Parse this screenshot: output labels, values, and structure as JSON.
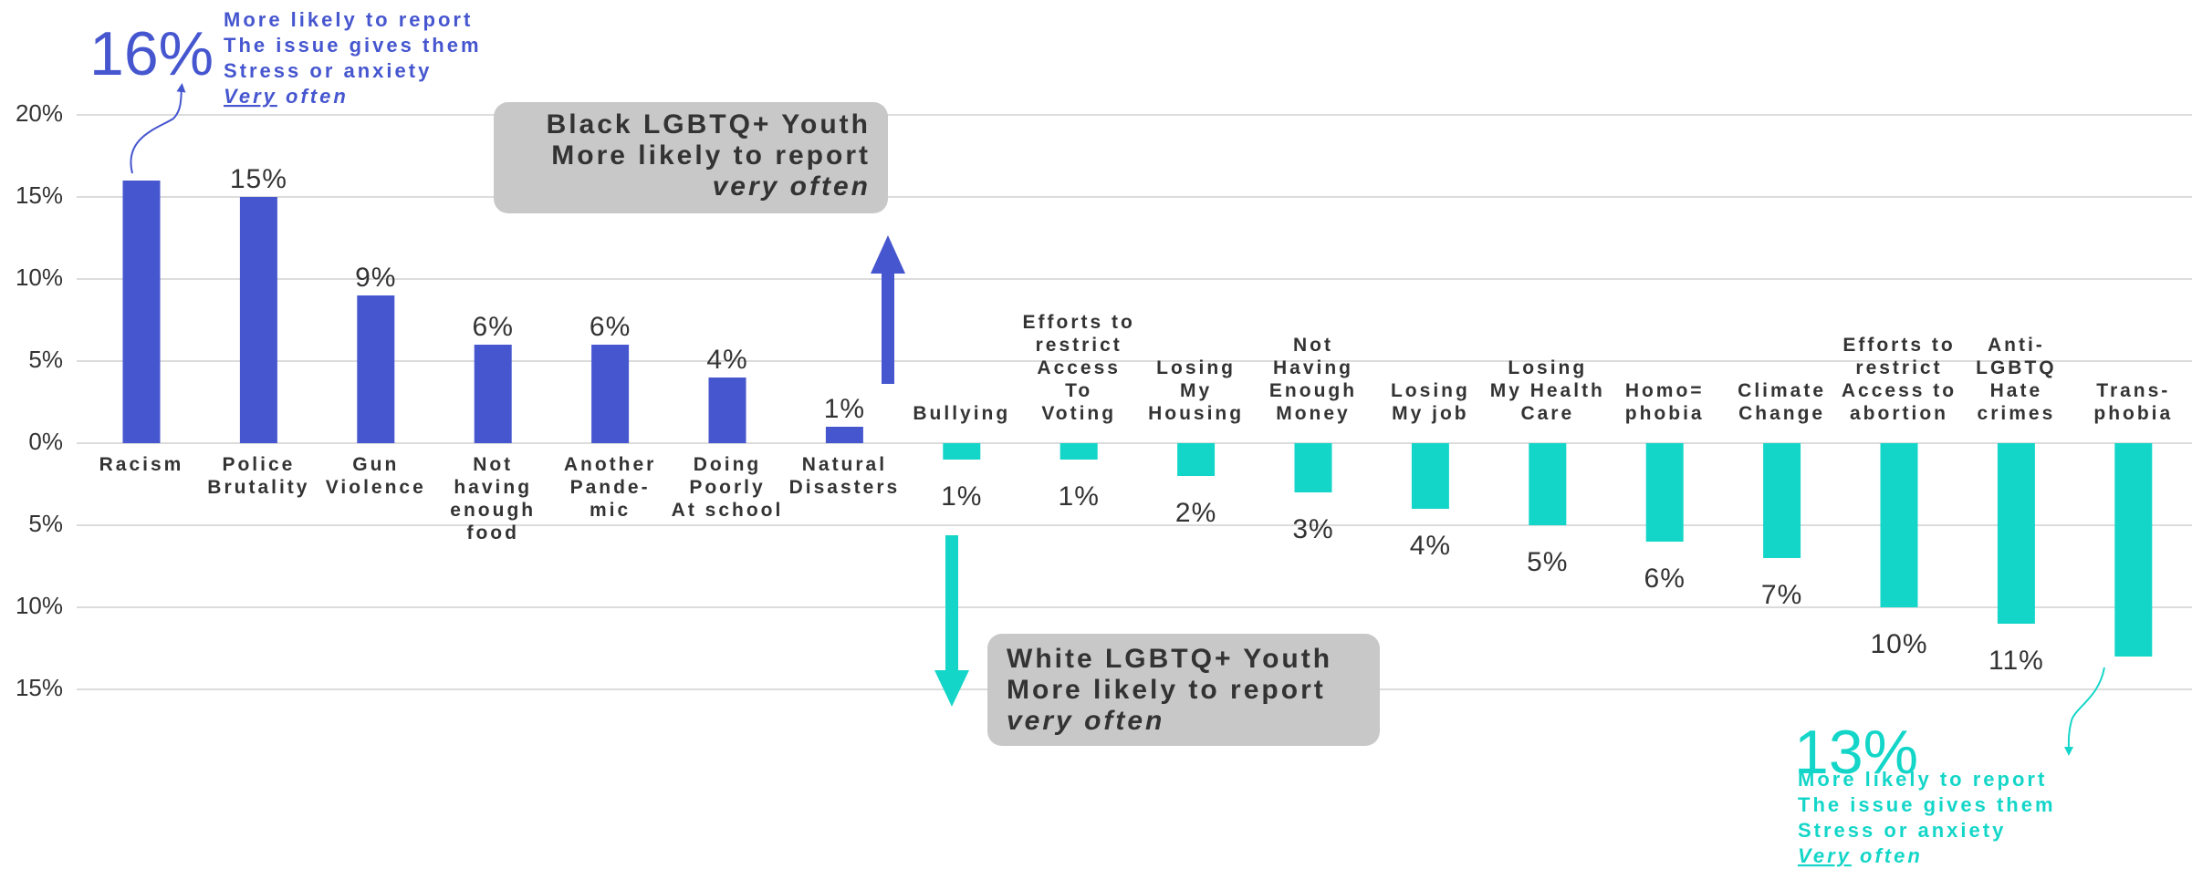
{
  "chart_data": {
    "type": "diverging_bar",
    "categories": [
      [
        "Racism"
      ],
      [
        "Police",
        "Brutality"
      ],
      [
        "Gun",
        "Violence"
      ],
      [
        "Not",
        "having",
        "enough",
        "food"
      ],
      [
        "Another",
        "Pande-",
        "mic"
      ],
      [
        "Doing",
        "Poorly",
        "At school"
      ],
      [
        "Natural",
        "Disasters"
      ],
      [
        "Bullying"
      ],
      [
        "Efforts to",
        "restrict",
        "Access",
        "To",
        "Voting"
      ],
      [
        "Losing",
        "My",
        "Housing"
      ],
      [
        "Not",
        "Having",
        "Enough",
        "Money"
      ],
      [
        "Losing",
        "My job"
      ],
      [
        "Losing",
        "My Health",
        "Care"
      ],
      [
        "Homo=",
        "phobia"
      ],
      [
        "Climate",
        "Change"
      ],
      [
        "Efforts to",
        "restrict",
        "Access to",
        "abortion"
      ],
      [
        "Anti-",
        "LGBTQ",
        "Hate",
        "crimes"
      ],
      [
        "Trans-",
        "phobia"
      ]
    ],
    "values": [
      16,
      15,
      9,
      6,
      6,
      4,
      1,
      -1,
      -1,
      -2,
      -3,
      -4,
      -5,
      -6,
      -7,
      -10,
      -11,
      -13
    ],
    "value_labels": [
      null,
      "15%",
      "9%",
      "6%",
      "6%",
      "4%",
      "1%",
      "1%",
      "1%",
      "2%",
      "3%",
      "4%",
      "5%",
      "6%",
      "7%",
      "10%",
      "11%",
      null
    ],
    "positive_color": "#4656cf",
    "negative_color": "#14d6c8",
    "ylim": [
      -15,
      20
    ],
    "yticks": [
      {
        "value": 20,
        "label": "20%"
      },
      {
        "value": 15,
        "label": "15%"
      },
      {
        "value": 10,
        "label": "10%"
      },
      {
        "value": 5,
        "label": "5%"
      },
      {
        "value": 0,
        "label": "0%"
      },
      {
        "value": -5,
        "label": "5%"
      },
      {
        "value": -10,
        "label": "10%"
      },
      {
        "value": -15,
        "label": "15%"
      }
    ],
    "grid": true,
    "annotations": {
      "black_callout": {
        "big": "16%",
        "lines": [
          "More likely to report",
          "The issue gives them",
          "Stress or anxiety"
        ],
        "emph": "Very",
        "emph_tail": "often"
      },
      "white_callout": {
        "big": "13%",
        "lines": [
          "More likely to report",
          "The issue gives them",
          "Stress or anxiety"
        ],
        "emph": "Very",
        "emph_tail": "often"
      },
      "black_box": {
        "lines": [
          "Black LGBTQ+ Youth",
          "More likely to report"
        ],
        "italic": "very often"
      },
      "white_box": {
        "lines": [
          "White LGBTQ+ Youth",
          "More likely to report"
        ],
        "italic": "very often"
      }
    }
  }
}
